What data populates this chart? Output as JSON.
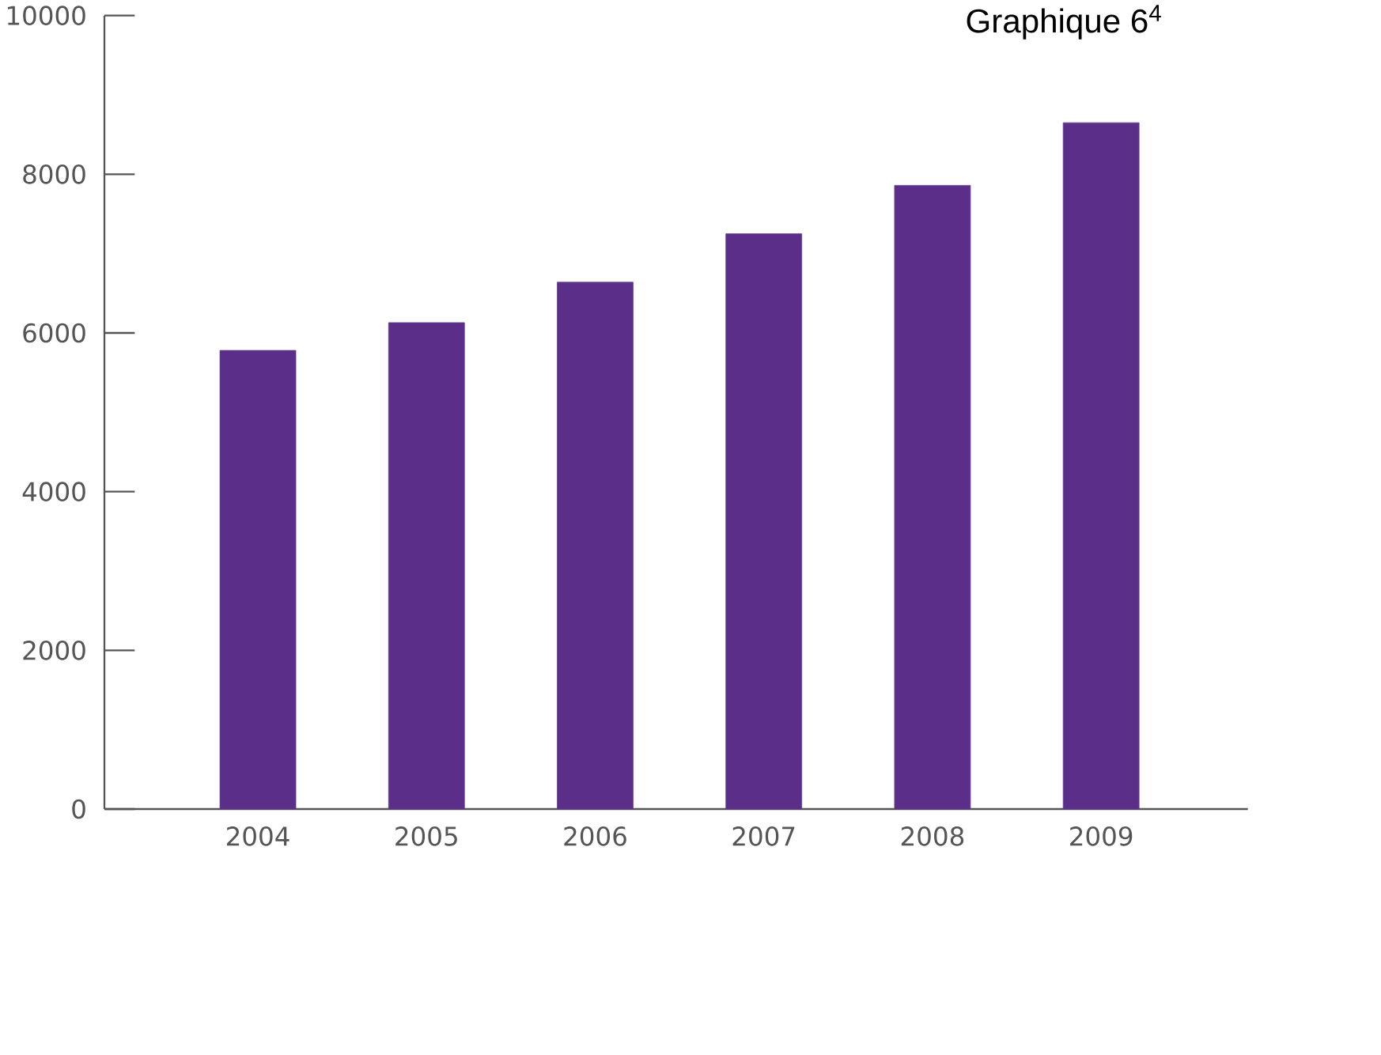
{
  "chart_data": {
    "type": "bar",
    "title": "Graphique 6$^{4}$",
    "categories": [
      "2004",
      "2005",
      "2006",
      "2007",
      "2008",
      "2009"
    ],
    "values": [
      5780,
      6130,
      6640,
      7250,
      7860,
      8650
    ],
    "color": "#5b2e8a",
    "ylim": [
      0,
      10000
    ],
    "yticks": [
      0,
      2000,
      4000,
      6000,
      8000,
      10000
    ],
    "grid": false
  }
}
